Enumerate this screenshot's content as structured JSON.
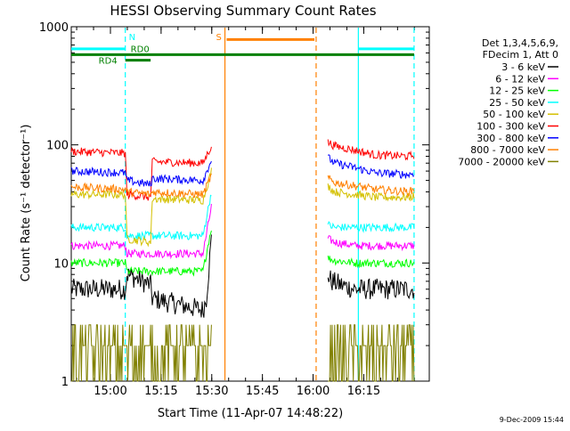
{
  "chart_data": {
    "type": "line",
    "title": "HESSI Observing Summary Count Rates",
    "xlabel": "Start Time (11-Apr-07 14:48:22)",
    "ylabel": "Count Rate (s⁻¹ detector⁻¹)",
    "footer": "9-Dec-2009 15:44",
    "y_scale": "log",
    "ylim": [
      1,
      1000
    ],
    "xlim_minutes": [
      0,
      106
    ],
    "x_tick_labels": [
      "15:00",
      "15:15",
      "15:30",
      "15:45",
      "16:00",
      "16:15"
    ],
    "x_tick_minutes": [
      11.6,
      26.6,
      41.6,
      56.6,
      71.6,
      86.6
    ],
    "y_tick_labels": [
      "1",
      "10",
      "100",
      "1000"
    ],
    "y_tick_values": [
      1,
      10,
      100,
      1000
    ],
    "grid": false,
    "legend": {
      "position": "right",
      "header": [
        "Det 1,3,4,5,6,9,",
        "FDecim 1, Att 0"
      ]
    },
    "series": [
      {
        "name": "3 - 6 keV",
        "color": "#000000",
        "segments": [
          {
            "x": [
              0,
              16,
              16.5,
              23.5,
              24,
              39,
              40,
              41.5
            ],
            "y": [
              6,
              6,
              8,
              6.5,
              5,
              4,
              5,
              16
            ]
          },
          {
            "x": [
              76,
              77,
              80,
              84,
              90,
              100,
              101.5
            ],
            "y": [
              8,
              7,
              6.5,
              6,
              6,
              6,
              6
            ]
          }
        ]
      },
      {
        "name": "6 - 12 keV",
        "color": "#ff00ff",
        "segments": [
          {
            "x": [
              0,
              16,
              16.5,
              23.5,
              24,
              39,
              41.5
            ],
            "y": [
              14,
              14,
              12,
              12,
              12,
              12,
              30
            ]
          },
          {
            "x": [
              76,
              78,
              84,
              90,
              100,
              101.5
            ],
            "y": [
              16,
              15,
              14,
              14,
              14,
              14
            ]
          }
        ]
      },
      {
        "name": "12 - 25 keV",
        "color": "#00ff00",
        "segments": [
          {
            "x": [
              0,
              16,
              16.5,
              23.5,
              24,
              39,
              41.5
            ],
            "y": [
              10,
              10,
              8.5,
              8.5,
              8.5,
              8.5,
              20
            ]
          },
          {
            "x": [
              76,
              78,
              84,
              90,
              100,
              101.5
            ],
            "y": [
              11,
              10.5,
              10,
              10,
              10,
              10
            ]
          }
        ]
      },
      {
        "name": "25 - 50 keV",
        "color": "#00ffff",
        "segments": [
          {
            "x": [
              0,
              16,
              16.5,
              23.5,
              24,
              39,
              41.5
            ],
            "y": [
              20,
              20,
              17,
              17,
              17,
              17,
              40
            ]
          },
          {
            "x": [
              76,
              78,
              84,
              90,
              100,
              101.5
            ],
            "y": [
              21,
              20,
              20,
              20,
              20,
              20
            ]
          }
        ]
      },
      {
        "name": "50 - 100 keV",
        "color": "#d4c000",
        "segments": [
          {
            "x": [
              0,
              16,
              16.5,
              23.5,
              24,
              39,
              41.5
            ],
            "y": [
              38,
              38,
              16,
              15,
              35,
              34,
              60
            ]
          },
          {
            "x": [
              76,
              78,
              84,
              90,
              100,
              101.5
            ],
            "y": [
              45,
              40,
              38,
              36,
              36,
              37
            ]
          }
        ]
      },
      {
        "name": "100 - 300 keV",
        "color": "#ff0000",
        "segments": [
          {
            "x": [
              0,
              16,
              16.5,
              23.5,
              24,
              39,
              41.5
            ],
            "y": [
              88,
              85,
              38,
              36,
              72,
              70,
              98
            ]
          },
          {
            "x": [
              76,
              78,
              84,
              90,
              100,
              101.5
            ],
            "y": [
              105,
              98,
              90,
              82,
              80,
              82
            ]
          }
        ]
      },
      {
        "name": "300 - 800 keV",
        "color": "#0000ff",
        "segments": [
          {
            "x": [
              0,
              16,
              16.5,
              23.5,
              24,
              39,
              41.5
            ],
            "y": [
              60,
              58,
              50,
              46,
              52,
              50,
              75
            ]
          },
          {
            "x": [
              76,
              78,
              84,
              90,
              100,
              101.5
            ],
            "y": [
              78,
              70,
              64,
              58,
              56,
              58
            ]
          }
        ]
      },
      {
        "name": "800 - 7000 keV",
        "color": "#ff8000",
        "segments": [
          {
            "x": [
              0,
              16,
              16.5,
              23.5,
              24,
              39,
              41.5
            ],
            "y": [
              44,
              42,
              40,
              38,
              40,
              38,
              55
            ]
          },
          {
            "x": [
              76,
              78,
              84,
              90,
              100,
              101.5
            ],
            "y": [
              52,
              48,
              45,
              42,
              40,
              42
            ]
          }
        ]
      },
      {
        "name": "7000 - 20000 keV",
        "color": "#808000",
        "segments": [
          {
            "x": [
              0,
              41.5
            ],
            "y": [
              2,
              2
            ]
          },
          {
            "x": [
              76,
              101.5
            ],
            "y": [
              2,
              2
            ]
          }
        ]
      }
    ],
    "markers": [
      {
        "label": "N",
        "color": "#00ffff",
        "style": "dashed",
        "x": 16
      },
      {
        "label": "",
        "color": "#00ffff",
        "style": "solid",
        "x": 85
      },
      {
        "label": "",
        "color": "#00ffff",
        "style": "dashed",
        "x": 101.5
      },
      {
        "label": "S",
        "color": "#ff8000",
        "style": "solid",
        "x": 45.5
      },
      {
        "label": "",
        "color": "#ff8000",
        "style": "dashed",
        "x": 72.5
      }
    ],
    "bands": [
      {
        "label": "",
        "color": "#00ffff",
        "x": [
          0,
          16
        ],
        "y": 650
      },
      {
        "label": "",
        "color": "#00ffff",
        "x": [
          85,
          101.5
        ],
        "y": 650
      },
      {
        "label": "",
        "color": "#ff8000",
        "x": [
          46,
          72
        ],
        "y": 780
      },
      {
        "label": "RD0",
        "color": "#008000",
        "x": [
          0,
          101.5
        ],
        "y": 580
      },
      {
        "label": "RD4",
        "color": "#008000",
        "x": [
          16,
          23.5
        ],
        "y": 520
      }
    ]
  }
}
